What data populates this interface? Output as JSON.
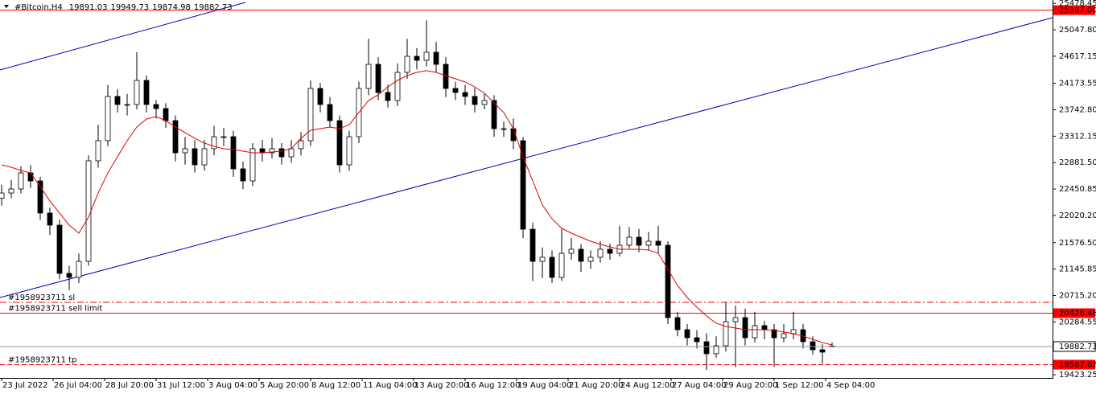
{
  "chart_data": {
    "type": "candlestick",
    "title": "#Bitcoin,H4",
    "x": [
      0,
      3,
      6,
      9,
      12,
      15,
      18,
      21,
      24,
      27,
      30,
      33,
      36,
      39,
      42,
      45,
      48,
      51,
      54,
      57,
      60,
      63,
      66,
      69,
      72,
      75,
      78,
      81,
      84,
      87,
      90,
      93,
      96,
      99,
      102,
      105,
      108,
      111,
      114,
      117,
      120,
      123,
      126,
      129,
      132,
      135,
      138,
      141,
      144,
      147,
      150,
      153,
      156,
      159,
      162,
      165,
      168,
      171,
      174,
      177,
      180,
      183,
      186,
      189,
      192,
      195,
      198,
      201,
      204,
      207,
      210,
      213,
      216,
      219,
      222,
      225,
      228,
      231,
      234,
      237,
      240,
      243,
      246,
      249,
      252,
      255,
      258
    ],
    "open": [
      22300,
      22386,
      22452,
      22714,
      22583,
      22059,
      21862,
      21076,
      21010,
      21272,
      22911,
      23239,
      23960,
      23829,
      23829,
      24222,
      23829,
      23763,
      23566,
      23042,
      23108,
      22845,
      23108,
      23304,
      23304,
      22780,
      22583,
      23108,
      23042,
      23108,
      22976,
      23108,
      23239,
      24091,
      23829,
      23566,
      22845,
      23304,
      24091,
      24484,
      24025,
      23894,
      24353,
      24615,
      24550,
      24681,
      24484,
      24091,
      24025,
      23960,
      23829,
      23894,
      23435,
      23435,
      23239,
      21796,
      21272,
      21338,
      21010,
      21403,
      21469,
      21272,
      21338,
      21469,
      21403,
      21534,
      21665,
      21534,
      21600,
      21534,
      20354,
      20157,
      20026,
      19961,
      19765,
      19895,
      20289,
      20354,
      20026,
      20223,
      20157,
      20026,
      20092,
      20157,
      19961,
      19830,
      19891.03
    ],
    "high": [
      22520,
      22600,
      22820,
      22840,
      22650,
      22150,
      21950,
      21200,
      21400,
      23000,
      23500,
      24150,
      24080,
      24000,
      24680,
      24300,
      23900,
      23850,
      23650,
      23300,
      23250,
      23250,
      23480,
      23450,
      23400,
      22900,
      23200,
      23250,
      23280,
      23200,
      23250,
      23380,
      24220,
      24180,
      23950,
      23650,
      23400,
      24200,
      24900,
      24600,
      24150,
      24500,
      24900,
      24750,
      25200,
      24850,
      24600,
      24200,
      24150,
      24100,
      24000,
      23980,
      23550,
      23600,
      23300,
      21900,
      21500,
      21450,
      21800,
      21650,
      21550,
      21450,
      21600,
      21560,
      21850,
      21830,
      21800,
      21750,
      21850,
      21600,
      20450,
      20250,
      20150,
      20100,
      20050,
      20600,
      20550,
      20500,
      20450,
      20300,
      20250,
      20250,
      20450,
      20250,
      20050,
      19920,
      19949.73
    ],
    "low": [
      22180,
      22300,
      22380,
      22470,
      21950,
      21700,
      20980,
      20800,
      20920,
      21200,
      22800,
      23150,
      23700,
      23650,
      23750,
      23700,
      23600,
      23450,
      22900,
      22850,
      22720,
      22750,
      23000,
      23150,
      22650,
      22450,
      22500,
      22900,
      22950,
      22850,
      22880,
      23000,
      23150,
      23700,
      23450,
      22720,
      22750,
      23200,
      23980,
      23900,
      23780,
      23800,
      24250,
      24400,
      24450,
      24350,
      23950,
      23900,
      23820,
      23700,
      23750,
      23300,
      23300,
      23100,
      21650,
      20950,
      21000,
      20920,
      20950,
      21300,
      21100,
      21150,
      21250,
      21300,
      21350,
      21480,
      21420,
      21450,
      21400,
      20250,
      20050,
      19900,
      19850,
      19500,
      19700,
      19800,
      19550,
      19900,
      19950,
      20000,
      19550,
      19950,
      20000,
      19850,
      19750,
      19600,
      19874.98
    ],
    "close": [
      22386,
      22452,
      22714,
      22583,
      22059,
      21862,
      21076,
      21010,
      21272,
      22911,
      23239,
      23960,
      23829,
      23829,
      24222,
      23829,
      23763,
      23566,
      23042,
      23108,
      22845,
      23108,
      23304,
      23304,
      22780,
      22583,
      23108,
      23042,
      23108,
      22976,
      23108,
      23239,
      24091,
      23829,
      23566,
      22845,
      23304,
      24091,
      24484,
      24025,
      23894,
      24353,
      24615,
      24550,
      24681,
      24484,
      24091,
      24025,
      23960,
      23829,
      23894,
      23435,
      23435,
      23239,
      21796,
      21272,
      21338,
      21010,
      21403,
      21469,
      21272,
      21338,
      21469,
      21403,
      21534,
      21665,
      21534,
      21600,
      21534,
      20354,
      20157,
      20026,
      19961,
      19765,
      19895,
      20289,
      20354,
      20026,
      20223,
      20157,
      20026,
      20092,
      20157,
      19961,
      19830,
      19791,
      19882.73
    ],
    "up_color": "#ffffff",
    "down_color": "#000000",
    "ma": {
      "color": "#e00000",
      "values": [
        22845,
        22806,
        22754,
        22714,
        22490,
        22255,
        22059,
        21862,
        21731,
        21993,
        22386,
        22714,
        22976,
        23239,
        23462,
        23593,
        23632,
        23566,
        23462,
        23370,
        23278,
        23199,
        23147,
        23108,
        23095,
        23068,
        23042,
        23042,
        23055,
        23068,
        23108,
        23278,
        23409,
        23435,
        23462,
        23435,
        23501,
        23698,
        23894,
        23986,
        24117,
        24222,
        24301,
        24353,
        24380,
        24353,
        24301,
        24248,
        24196,
        24117,
        24012,
        23855,
        23698,
        23435,
        22976,
        22583,
        22190,
        21967,
        21810,
        21731,
        21665,
        21600,
        21547,
        21508,
        21469,
        21469,
        21469,
        21456,
        21403,
        21141,
        20879,
        20682,
        20525,
        20381,
        20263,
        20210,
        20184,
        20157,
        20157,
        20157,
        20144,
        20118,
        20092,
        20052,
        20000,
        19947,
        19908
      ]
    },
    "trendlines": [
      {
        "color": "#0000c0",
        "x": [
          -0.5,
          75.75
        ],
        "y": [
          24392,
          25494
        ]
      },
      {
        "color": "#0000c0",
        "x": [
          -0.5,
          326.5
        ],
        "y": [
          20682,
          25245
        ]
      }
    ],
    "levels": [
      {
        "value": 25367,
        "label": "25367.00",
        "color": "#ff0000",
        "style": "solid",
        "tag": true
      },
      {
        "value": 20603,
        "name": "#1958923711 sl",
        "color": "#ff0000",
        "style": "dashdot",
        "tag": false
      },
      {
        "value": 20426.48,
        "name": "#1958923711 sell limit",
        "color": "#ff0000",
        "style": "solid",
        "tag": true
      },
      {
        "value": 19587.62,
        "name": "#1958923711 tp",
        "color": "#ff0000",
        "style": "dashed",
        "tag": true
      }
    ],
    "bid_color": "#8c9bb0",
    "xlim": [
      -0.5,
      326.5
    ],
    "ylim": [
      19370.8,
      25533
    ],
    "xticks": [
      {
        "value": 0,
        "label": "23 Jul 2022"
      },
      {
        "value": 16,
        "label": "26 Jul 04:00"
      },
      {
        "value": 32,
        "label": "28 Jul 20:00"
      },
      {
        "value": 48,
        "label": "31 Jul 12:00"
      },
      {
        "value": 64,
        "label": "3 Aug 04:00"
      },
      {
        "value": 80,
        "label": "5 Aug 20:00"
      },
      {
        "value": 96,
        "label": "8 Aug 12:00"
      },
      {
        "value": 112,
        "label": "11 Aug 04:00"
      },
      {
        "value": 128,
        "label": "13 Aug 20:00"
      },
      {
        "value": 144,
        "label": "16 Aug 12:00"
      },
      {
        "value": 160,
        "label": "19 Aug 04:00"
      },
      {
        "value": 176,
        "label": "21 Aug 20:00"
      },
      {
        "value": 192,
        "label": "24 Aug 12:00"
      },
      {
        "value": 208,
        "label": "27 Aug 04:00"
      },
      {
        "value": 224,
        "label": "29 Aug 20:00"
      },
      {
        "value": 240,
        "label": "1 Sep 12:00"
      },
      {
        "value": 256,
        "label": "4 Sep 04:00"
      }
    ],
    "yticks": [
      25478.45,
      {
        "value": 25047.8,
        "label": "25047.80"
      },
      24617.15,
      24173.55,
      {
        "value": 23742.8,
        "label": "23742.80"
      },
      23312.15,
      {
        "value": 22881.5,
        "label": "22881.50"
      },
      22450.85,
      {
        "value": 22020.2,
        "label": "22020.20"
      },
      {
        "value": 21576.5,
        "label": "21576.50"
      },
      21145.85,
      {
        "value": 20715.2,
        "label": "20715.20"
      },
      20284.55,
      19423.25
    ]
  }
}
